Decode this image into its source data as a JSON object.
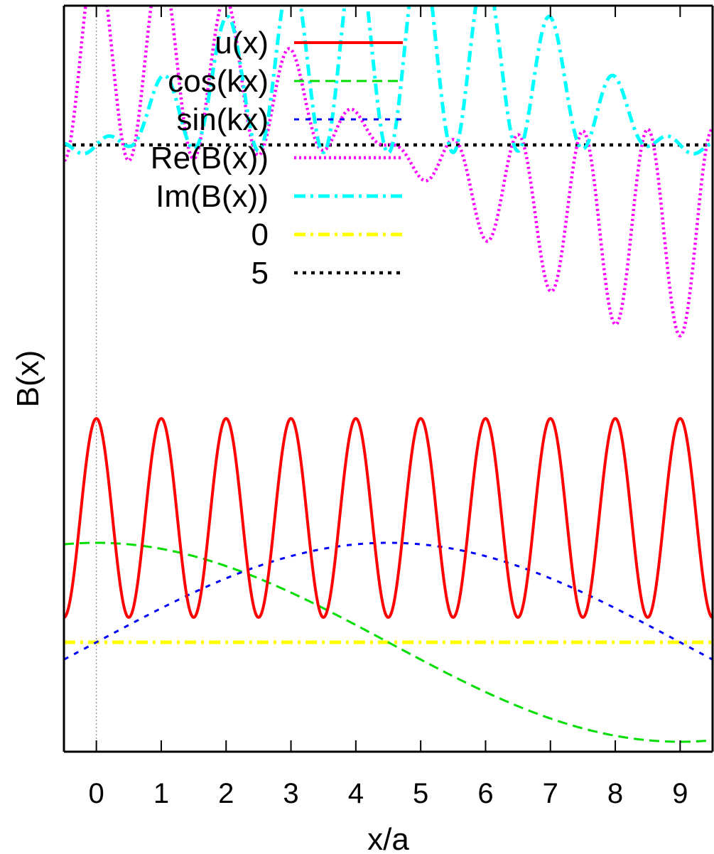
{
  "chart_data": {
    "type": "line",
    "title": "",
    "xlabel": "x/a",
    "ylabel": "B(x)",
    "xlim": [
      -0.5,
      9.5
    ],
    "ylim": [
      -1.1,
      6.4
    ],
    "x_ticks": [
      0,
      1,
      2,
      3,
      4,
      5,
      6,
      7,
      8,
      9
    ],
    "x_tick_labels": [
      "0",
      "1",
      "2",
      "3",
      "4",
      "5",
      "6",
      "7",
      "8",
      "9"
    ],
    "y_tick_labels": [],
    "grid": false,
    "vertical_reference_line_x": 0,
    "legend_position": "top-right",
    "series": [
      {
        "name": "u(x)",
        "color": "#ff0000",
        "style": "solid",
        "description_formula": "1.25 + cos(2*pi*x)",
        "x": [
          -0.5,
          0,
          0.5,
          1,
          1.5,
          2,
          2.5,
          3,
          3.5,
          4,
          4.5,
          5,
          5.5,
          6,
          6.5,
          7,
          7.5,
          8,
          8.5,
          9,
          9.5
        ],
        "y": [
          0.25,
          2.25,
          0.25,
          2.25,
          0.25,
          2.25,
          0.25,
          2.25,
          0.25,
          2.25,
          0.25,
          2.25,
          0.25,
          2.25,
          0.25,
          2.25,
          0.25,
          2.25,
          0.25,
          2.25,
          0.25
        ]
      },
      {
        "name": "cos(kx)",
        "color": "#00dd00",
        "style": "dashed",
        "x": [
          -0.5,
          0,
          1,
          2,
          3,
          4,
          4.5,
          5,
          6,
          7,
          8,
          9,
          9.5
        ],
        "y": [
          0.97,
          1.0,
          0.94,
          0.77,
          0.5,
          0.17,
          0.0,
          -0.17,
          -0.5,
          -0.77,
          -0.94,
          -1.0,
          -0.97
        ]
      },
      {
        "name": "sin(kx)",
        "color": "#0000ff",
        "style": "short-dashed",
        "x": [
          -0.5,
          0,
          1,
          2,
          3,
          4,
          4.5,
          5,
          6,
          7,
          8,
          9,
          9.5
        ],
        "y": [
          -0.17,
          0.0,
          0.34,
          0.64,
          0.87,
          0.98,
          1.0,
          0.98,
          0.87,
          0.64,
          0.34,
          0.0,
          -0.17
        ]
      },
      {
        "name": "Re(B(x))",
        "color": "#ff00ff",
        "style": "dotted",
        "x": [
          -0.5,
          0,
          0.5,
          1,
          1.5,
          2,
          2.5,
          3,
          3.5,
          4,
          4.5,
          5,
          5.5,
          6,
          6.5,
          7,
          7.5,
          8,
          8.5,
          9,
          9.5
        ],
        "y": [
          5.0,
          7.0,
          5.1,
          6.88,
          5.03,
          6.55,
          5.06,
          6.0,
          5.09,
          5.3,
          5.02,
          4.6,
          4.95,
          4.0,
          4.82,
          3.45,
          4.7,
          3.1,
          4.68,
          3.0,
          4.9
        ]
      },
      {
        "name": "Im(B(x))",
        "color": "#00ffff",
        "style": "dash-dot",
        "x": [
          -0.5,
          0,
          0.5,
          1,
          1.5,
          2,
          2.5,
          3,
          3.5,
          4,
          4.5,
          5,
          5.5,
          6,
          6.5,
          7,
          7.5,
          8,
          8.5,
          9,
          9.5
        ],
        "y": [
          4.95,
          4.93,
          5.02,
          5.5,
          5.04,
          6.35,
          5.09,
          6.85,
          5.06,
          7.0,
          5.04,
          7.0,
          5.08,
          6.85,
          5.1,
          6.4,
          5.07,
          5.8,
          5.05,
          5.07,
          4.95
        ]
      },
      {
        "name": "0",
        "color": "#ffff00",
        "style": "dash-dot-thick",
        "x": [
          -0.5,
          9.5
        ],
        "y": [
          0,
          0
        ]
      },
      {
        "name": "5",
        "color": "#000000",
        "style": "dotted-thick",
        "x": [
          -0.5,
          9.5
        ],
        "y": [
          5,
          5
        ]
      }
    ]
  }
}
